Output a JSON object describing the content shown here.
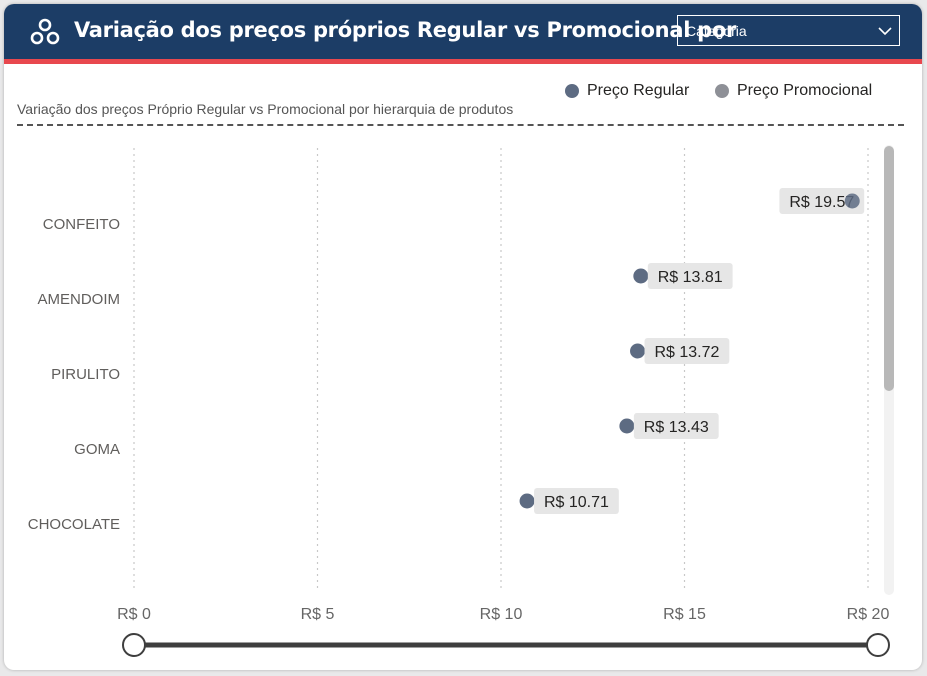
{
  "header": {
    "title": "Variação dos preços próprios Regular vs Promocional por",
    "dropdown_value": "Categoria",
    "colors": {
      "background": "#1c3d66",
      "accent": "#e8484e"
    },
    "icons": {
      "logo": "nodes-icon",
      "dropdown": "chevron-down-icon"
    }
  },
  "legend": {
    "items": [
      {
        "label": "Preço Regular",
        "color": "#5d6b82"
      },
      {
        "label": "Preço Promocional",
        "color": "#8e9097"
      }
    ]
  },
  "subtitle": "Variação dos preços Próprio Regular vs Promocional por hierarquia de produtos",
  "chart_data": {
    "type": "scatter",
    "orientation": "horizontal",
    "categories": [
      "CONFEITO",
      "AMENDOIM",
      "PIRULITO",
      "GOMA",
      "CHOCOLATE"
    ],
    "series": [
      {
        "name": "Preço Regular",
        "color": "#5d6b82",
        "values": [
          19.57,
          13.81,
          13.72,
          13.43,
          10.71
        ],
        "data_labels": [
          "R$ 19.57",
          "R$ 13.81",
          "R$ 13.72",
          "R$ 13.43",
          "R$ 10.71"
        ]
      }
    ],
    "x_ticks": [
      0,
      5,
      10,
      15,
      20
    ],
    "x_tick_labels": [
      "R$ 0",
      "R$ 5",
      "R$ 10",
      "R$ 15",
      "R$ 20"
    ],
    "xlim": [
      0,
      20
    ],
    "grid": "vertical dotted",
    "legend_position": "top-right",
    "range_slider": {
      "min": 0,
      "max": 20
    }
  }
}
